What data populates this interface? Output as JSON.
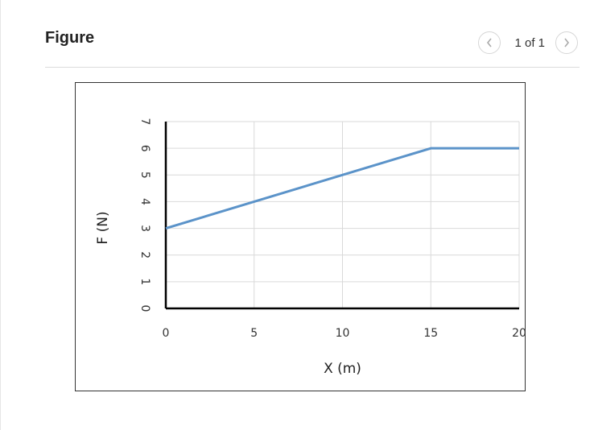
{
  "header": {
    "title": "Figure",
    "page_indicator": "1 of 1"
  },
  "colors": {
    "series": "#5b93c9",
    "gridline": "#d9d9d9",
    "axis": "#000000"
  },
  "icons": {
    "prev": "chevron-left-icon",
    "next": "chevron-right-icon"
  },
  "chart_data": {
    "type": "line",
    "title": "",
    "xlabel": "X (m)",
    "ylabel": "F (N)",
    "xlim": [
      0,
      20
    ],
    "ylim": [
      0,
      7
    ],
    "xticks": [
      0,
      5,
      10,
      15,
      20
    ],
    "yticks": [
      0,
      1,
      2,
      3,
      4,
      5,
      6,
      7
    ],
    "grid": true,
    "legend": "none",
    "series": [
      {
        "x": [
          0,
          15,
          20
        ],
        "y": [
          3,
          6,
          6
        ]
      }
    ]
  }
}
